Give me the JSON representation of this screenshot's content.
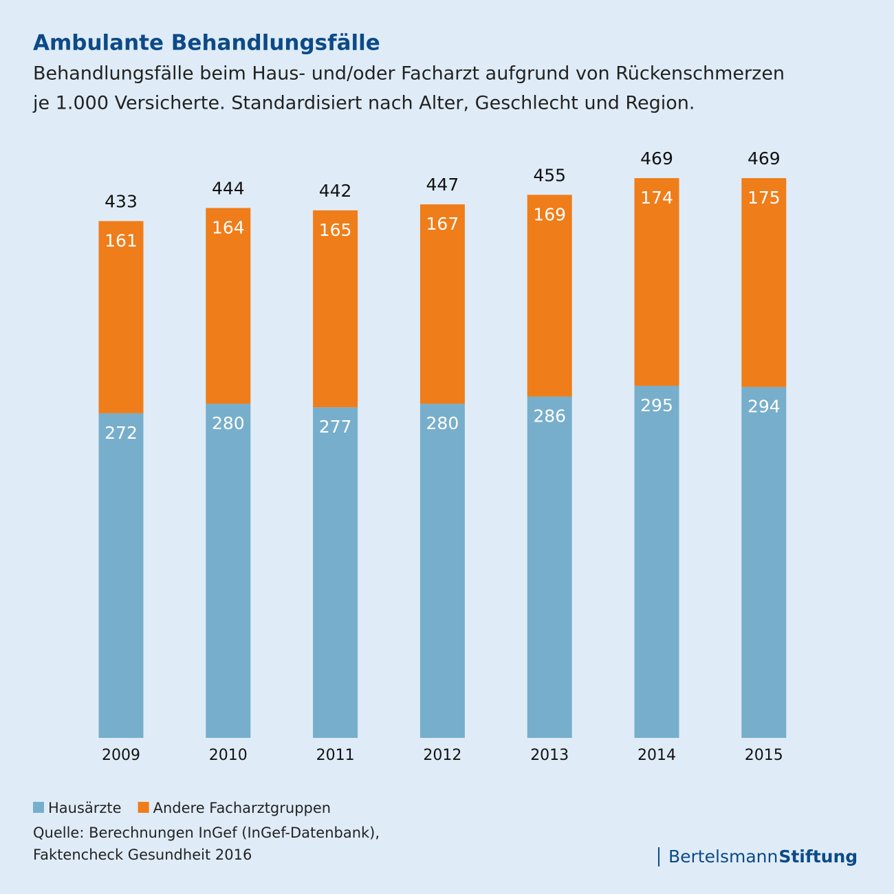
{
  "chart_data": {
    "type": "stacked-bar",
    "title": "Ambulante Behandlungsfälle",
    "subtitle": [
      "Behandlungsfälle beim Haus- und/oder Facharzt aufgrund von Rückenschmerzen",
      "je 1.000 Versicherte. Standardisiert nach Alter, Geschlecht und Region."
    ],
    "categories": [
      "2009",
      "2010",
      "2011",
      "2012",
      "2013",
      "2014",
      "2015"
    ],
    "series": [
      {
        "name": "Hausärzte",
        "color": "#77aecb",
        "values": [
          272,
          280,
          277,
          280,
          286,
          295,
          294
        ]
      },
      {
        "name": "Andere Facharztgruppen",
        "color": "#ef7d1a",
        "values": [
          161,
          164,
          165,
          167,
          169,
          174,
          175
        ]
      }
    ],
    "totals": [
      433,
      444,
      442,
      447,
      455,
      469,
      469
    ],
    "source": [
      "Quelle: Berechnungen InGef (InGef-Datenbank),",
      "Faktencheck Gesundheit 2016"
    ],
    "logo": [
      "Bertelsmann",
      "Stiftung"
    ]
  }
}
